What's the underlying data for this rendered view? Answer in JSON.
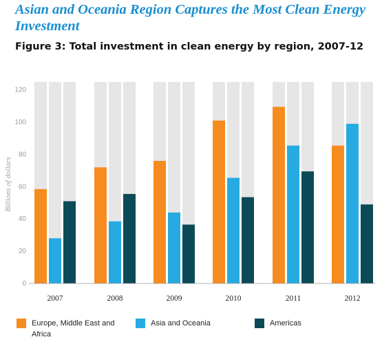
{
  "headline": "Asian  and Oceania Region Captures the Most Clean Energy Investment",
  "figure_title": "Figure 3: Total investment in clean energy by region, 2007-12",
  "colors": {
    "europe": "#f68b1f",
    "asia": "#27aae1",
    "americas": "#0d4a57",
    "background_bar": "#e6e6e6",
    "headline": "#1a8fd0"
  },
  "chart_data": {
    "type": "bar",
    "title": "Total investment in clean energy by region, 2007-12",
    "ylabel": "Billions of dollars",
    "xlabel": "",
    "ylim": [
      0,
      125
    ],
    "yticks": [
      0,
      20,
      40,
      60,
      80,
      100,
      120
    ],
    "categories": [
      "2007",
      "2008",
      "2009",
      "2010",
      "2011",
      "2012"
    ],
    "series": [
      {
        "name": "Europe, Middle East and Africa",
        "values": [
          58.5,
          72,
          76,
          101,
          109.5,
          85.5
        ]
      },
      {
        "name": "Asia and Oceania",
        "values": [
          28,
          38.5,
          44,
          65.5,
          85.5,
          99
        ]
      },
      {
        "name": "Americas",
        "values": [
          51,
          55.5,
          36.5,
          53.5,
          69.5,
          49
        ]
      }
    ],
    "grid": false,
    "background_bars": true,
    "legend_position": "bottom"
  },
  "legend": [
    {
      "label": "Europe, Middle East and Africa",
      "color": "#f68b1f"
    },
    {
      "label": "Asia and Oceania",
      "color": "#27aae1"
    },
    {
      "label": "Americas",
      "color": "#0d4a57"
    }
  ]
}
